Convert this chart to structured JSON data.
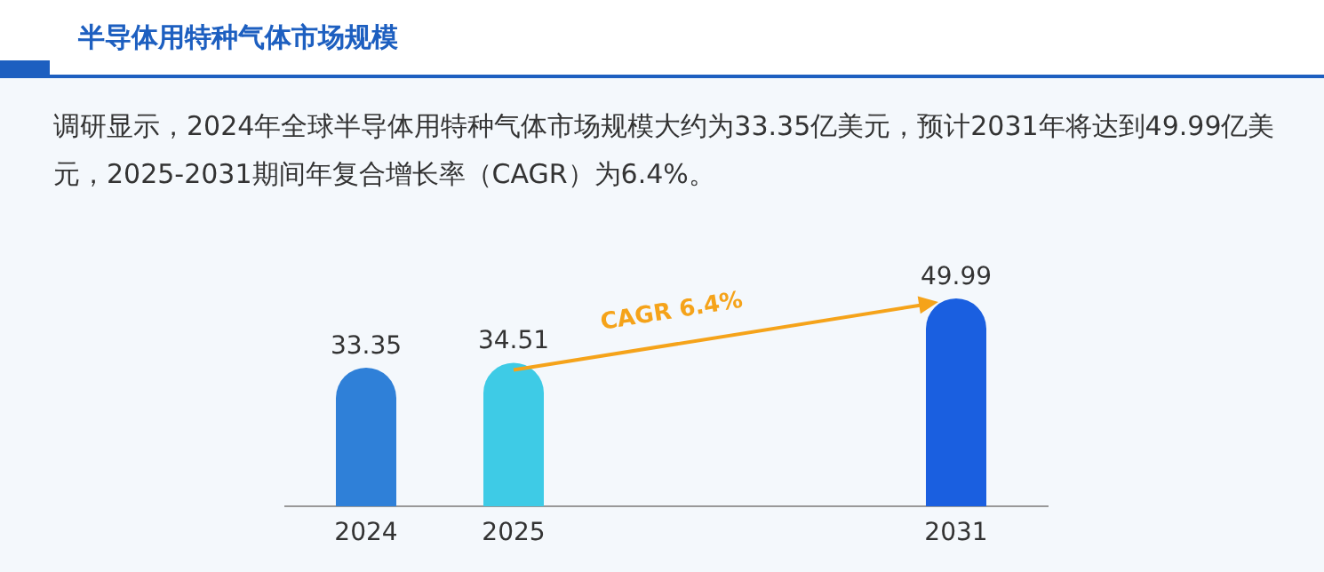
{
  "chart_data": {
    "type": "bar",
    "title": "半导体用特种气体市场规模",
    "subtitle": "调研显示，2024年全球半导体用特种气体市场规模大约为33.35亿美元，预计2031年将达到49.99亿美元，2025-2031期间年复合增长率（CAGR）为6.4%。",
    "categories": [
      "2024",
      "2025",
      null,
      null,
      "2031"
    ],
    "values": [
      33.35,
      34.51,
      null,
      null,
      49.99
    ],
    "colors": [
      "#2f80d8",
      "#3ecbe6",
      null,
      null,
      "#1a5fe0"
    ],
    "data_labels": true,
    "annotations": [
      "CAGR 6.4%"
    ]
  }
}
